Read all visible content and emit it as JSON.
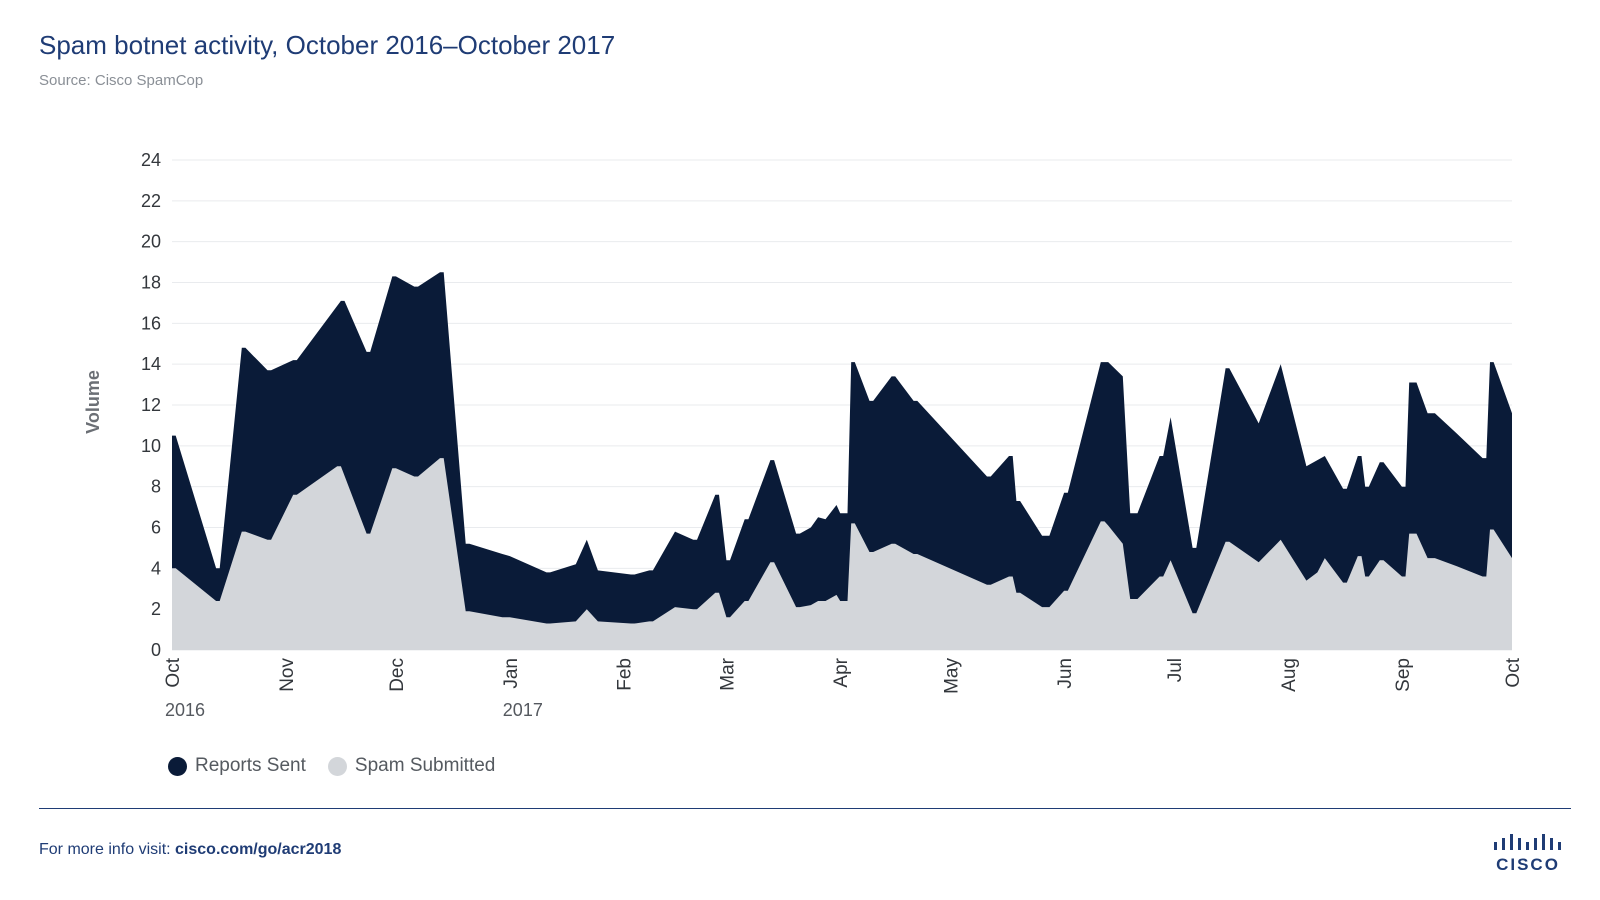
{
  "header": {
    "title": "Spam botnet activity, October 2016–October 2017",
    "source": "Source: Cisco SpamCop"
  },
  "legend": {
    "reports_label": "Reports Sent",
    "spam_label": "Spam Submitted"
  },
  "footer": {
    "prefix": "For more info visit: ",
    "link": "cisco.com/go/acr2018"
  },
  "logo": {
    "text": "CISCO",
    "icon": "cisco-bars-icon"
  },
  "colors": {
    "reports": "#0a1b38",
    "spam": "#d3d6da",
    "title": "#1f3c75",
    "grid": "#e9ebee"
  },
  "chart_data": {
    "type": "area",
    "ylabel": "Volume",
    "ylim": [
      0,
      24
    ],
    "yticks": [
      0,
      2,
      4,
      6,
      8,
      10,
      12,
      14,
      16,
      18,
      20,
      22,
      24
    ],
    "grid": "horizontal",
    "stacked": false,
    "legend_position": "bottom-left",
    "xlim": [
      "2016-10-01",
      "2017-10-01"
    ],
    "x_ticks": [
      {
        "date": "2016-10-01",
        "label": "Oct",
        "year": "2016"
      },
      {
        "date": "2016-11-01",
        "label": "Nov",
        "year": ""
      },
      {
        "date": "2016-12-01",
        "label": "Dec",
        "year": ""
      },
      {
        "date": "2017-01-01",
        "label": "Jan",
        "year": "2017"
      },
      {
        "date": "2017-02-01",
        "label": "Feb",
        "year": ""
      },
      {
        "date": "2017-03-01",
        "label": "Mar",
        "year": ""
      },
      {
        "date": "2017-04-01",
        "label": "Apr",
        "year": ""
      },
      {
        "date": "2017-05-01",
        "label": "May",
        "year": ""
      },
      {
        "date": "2017-06-01",
        "label": "Jun",
        "year": ""
      },
      {
        "date": "2017-07-01",
        "label": "Jul",
        "year": ""
      },
      {
        "date": "2017-08-01",
        "label": "Aug",
        "year": ""
      },
      {
        "date": "2017-09-01",
        "label": "Sep",
        "year": ""
      },
      {
        "date": "2017-10-01",
        "label": "Oct",
        "year": ""
      }
    ],
    "series": [
      {
        "name": "Reports Sent",
        "color": "#0a1b38",
        "points": [
          [
            "2016-10-01",
            10.5
          ],
          [
            "2016-10-02",
            10.5
          ],
          [
            "2016-10-13",
            4.0
          ],
          [
            "2016-10-14",
            4.0
          ],
          [
            "2016-10-20",
            14.8
          ],
          [
            "2016-10-21",
            14.8
          ],
          [
            "2016-10-27",
            13.7
          ],
          [
            "2016-10-28",
            13.7
          ],
          [
            "2016-11-03",
            14.2
          ],
          [
            "2016-11-04",
            14.2
          ],
          [
            "2016-11-16",
            17.1
          ],
          [
            "2016-11-17",
            17.1
          ],
          [
            "2016-11-23",
            14.6
          ],
          [
            "2016-11-24",
            14.6
          ],
          [
            "2016-11-30",
            18.3
          ],
          [
            "2016-12-01",
            18.3
          ],
          [
            "2016-12-06",
            17.8
          ],
          [
            "2016-12-07",
            17.8
          ],
          [
            "2016-12-13",
            18.5
          ],
          [
            "2016-12-14",
            18.5
          ],
          [
            "2016-12-20",
            5.2
          ],
          [
            "2016-12-21",
            5.2
          ],
          [
            "2016-12-30",
            4.7
          ],
          [
            "2017-01-01",
            4.6
          ],
          [
            "2017-01-11",
            3.8
          ],
          [
            "2017-01-12",
            3.8
          ],
          [
            "2017-01-19",
            4.2
          ],
          [
            "2017-01-22",
            5.4
          ],
          [
            "2017-01-25",
            3.9
          ],
          [
            "2017-02-03",
            3.7
          ],
          [
            "2017-02-04",
            3.7
          ],
          [
            "2017-02-08",
            3.9
          ],
          [
            "2017-02-09",
            3.9
          ],
          [
            "2017-02-15",
            5.8
          ],
          [
            "2017-02-20",
            5.4
          ],
          [
            "2017-02-21",
            5.4
          ],
          [
            "2017-02-26",
            7.6
          ],
          [
            "2017-02-27",
            7.6
          ],
          [
            "2017-03-01",
            4.4
          ],
          [
            "2017-03-02",
            4.4
          ],
          [
            "2017-03-06",
            6.4
          ],
          [
            "2017-03-07",
            6.4
          ],
          [
            "2017-03-13",
            9.3
          ],
          [
            "2017-03-14",
            9.3
          ],
          [
            "2017-03-20",
            5.7
          ],
          [
            "2017-03-21",
            5.7
          ],
          [
            "2017-03-24",
            6.0
          ],
          [
            "2017-03-26",
            6.5
          ],
          [
            "2017-03-28",
            6.4
          ],
          [
            "2017-03-31",
            7.1
          ],
          [
            "2017-04-01",
            6.7
          ],
          [
            "2017-04-03",
            6.7
          ],
          [
            "2017-04-04",
            14.1
          ],
          [
            "2017-04-05",
            14.1
          ],
          [
            "2017-04-09",
            12.2
          ],
          [
            "2017-04-10",
            12.2
          ],
          [
            "2017-04-15",
            13.4
          ],
          [
            "2017-04-16",
            13.4
          ],
          [
            "2017-04-21",
            12.2
          ],
          [
            "2017-04-22",
            12.2
          ],
          [
            "2017-05-11",
            8.5
          ],
          [
            "2017-05-12",
            8.5
          ],
          [
            "2017-05-17",
            9.5
          ],
          [
            "2017-05-18",
            9.5
          ],
          [
            "2017-05-19",
            7.3
          ],
          [
            "2017-05-20",
            7.3
          ],
          [
            "2017-05-26",
            5.6
          ],
          [
            "2017-05-28",
            5.6
          ],
          [
            "2017-06-01",
            7.7
          ],
          [
            "2017-06-02",
            7.7
          ],
          [
            "2017-06-11",
            14.1
          ],
          [
            "2017-06-12",
            14.1
          ],
          [
            "2017-06-13",
            14.1
          ],
          [
            "2017-06-17",
            13.4
          ],
          [
            "2017-06-19",
            6.7
          ],
          [
            "2017-06-21",
            6.7
          ],
          [
            "2017-06-27",
            9.5
          ],
          [
            "2017-06-28",
            9.5
          ],
          [
            "2017-06-30",
            11.4
          ],
          [
            "2017-07-06",
            5.0
          ],
          [
            "2017-07-07",
            5.0
          ],
          [
            "2017-07-15",
            13.8
          ],
          [
            "2017-07-16",
            13.8
          ],
          [
            "2017-07-24",
            11.1
          ],
          [
            "2017-07-30",
            14.0
          ],
          [
            "2017-08-06",
            9.0
          ],
          [
            "2017-08-09",
            9.3
          ],
          [
            "2017-08-11",
            9.5
          ],
          [
            "2017-08-16",
            7.9
          ],
          [
            "2017-08-17",
            7.9
          ],
          [
            "2017-08-20",
            9.5
          ],
          [
            "2017-08-21",
            9.5
          ],
          [
            "2017-08-22",
            8.0
          ],
          [
            "2017-08-23",
            8.0
          ],
          [
            "2017-08-26",
            9.2
          ],
          [
            "2017-08-27",
            9.2
          ],
          [
            "2017-09-01",
            8.0
          ],
          [
            "2017-09-02",
            8.0
          ],
          [
            "2017-09-03",
            13.1
          ],
          [
            "2017-09-05",
            13.1
          ],
          [
            "2017-09-08",
            11.6
          ],
          [
            "2017-09-10",
            11.6
          ],
          [
            "2017-09-16",
            10.6
          ],
          [
            "2017-09-23",
            9.4
          ],
          [
            "2017-09-24",
            9.4
          ],
          [
            "2017-09-25",
            14.1
          ],
          [
            "2017-09-26",
            14.1
          ],
          [
            "2017-10-03",
            11.6
          ]
        ]
      },
      {
        "name": "Spam Submitted",
        "color": "#d3d6da",
        "points": [
          [
            "2016-10-01",
            4.0
          ],
          [
            "2016-10-02",
            4.0
          ],
          [
            "2016-10-13",
            2.4
          ],
          [
            "2016-10-14",
            2.4
          ],
          [
            "2016-10-20",
            5.8
          ],
          [
            "2016-10-21",
            5.8
          ],
          [
            "2016-10-27",
            5.4
          ],
          [
            "2016-10-28",
            5.4
          ],
          [
            "2016-11-03",
            7.6
          ],
          [
            "2016-11-04",
            7.6
          ],
          [
            "2016-11-15",
            9.0
          ],
          [
            "2016-11-16",
            9.0
          ],
          [
            "2016-11-23",
            5.7
          ],
          [
            "2016-11-24",
            5.7
          ],
          [
            "2016-11-30",
            8.9
          ],
          [
            "2016-12-01",
            8.9
          ],
          [
            "2016-12-06",
            8.5
          ],
          [
            "2016-12-07",
            8.5
          ],
          [
            "2016-12-13",
            9.4
          ],
          [
            "2016-12-14",
            9.4
          ],
          [
            "2016-12-20",
            1.9
          ],
          [
            "2016-12-21",
            1.9
          ],
          [
            "2016-12-30",
            1.6
          ],
          [
            "2017-01-01",
            1.6
          ],
          [
            "2017-01-11",
            1.3
          ],
          [
            "2017-01-12",
            1.3
          ],
          [
            "2017-01-19",
            1.4
          ],
          [
            "2017-01-22",
            2.0
          ],
          [
            "2017-01-25",
            1.4
          ],
          [
            "2017-02-03",
            1.3
          ],
          [
            "2017-02-04",
            1.3
          ],
          [
            "2017-02-08",
            1.4
          ],
          [
            "2017-02-09",
            1.4
          ],
          [
            "2017-02-15",
            2.1
          ],
          [
            "2017-02-20",
            2.0
          ],
          [
            "2017-02-21",
            2.0
          ],
          [
            "2017-02-26",
            2.8
          ],
          [
            "2017-02-27",
            2.8
          ],
          [
            "2017-03-01",
            1.6
          ],
          [
            "2017-03-02",
            1.6
          ],
          [
            "2017-03-06",
            2.4
          ],
          [
            "2017-03-07",
            2.4
          ],
          [
            "2017-03-13",
            4.3
          ],
          [
            "2017-03-14",
            4.3
          ],
          [
            "2017-03-20",
            2.1
          ],
          [
            "2017-03-21",
            2.1
          ],
          [
            "2017-03-24",
            2.2
          ],
          [
            "2017-03-26",
            2.4
          ],
          [
            "2017-03-28",
            2.4
          ],
          [
            "2017-03-31",
            2.7
          ],
          [
            "2017-04-01",
            2.4
          ],
          [
            "2017-04-03",
            2.4
          ],
          [
            "2017-04-04",
            6.2
          ],
          [
            "2017-04-05",
            6.2
          ],
          [
            "2017-04-09",
            4.8
          ],
          [
            "2017-04-10",
            4.8
          ],
          [
            "2017-04-15",
            5.2
          ],
          [
            "2017-04-16",
            5.2
          ],
          [
            "2017-04-21",
            4.7
          ],
          [
            "2017-04-22",
            4.7
          ],
          [
            "2017-05-11",
            3.2
          ],
          [
            "2017-05-12",
            3.2
          ],
          [
            "2017-05-17",
            3.6
          ],
          [
            "2017-05-18",
            3.6
          ],
          [
            "2017-05-19",
            2.8
          ],
          [
            "2017-05-20",
            2.8
          ],
          [
            "2017-05-26",
            2.1
          ],
          [
            "2017-05-28",
            2.1
          ],
          [
            "2017-06-01",
            2.9
          ],
          [
            "2017-06-02",
            2.9
          ],
          [
            "2017-06-11",
            6.3
          ],
          [
            "2017-06-12",
            6.3
          ],
          [
            "2017-06-13",
            6.1
          ],
          [
            "2017-06-17",
            5.2
          ],
          [
            "2017-06-19",
            2.5
          ],
          [
            "2017-06-21",
            2.5
          ],
          [
            "2017-06-27",
            3.6
          ],
          [
            "2017-06-28",
            3.6
          ],
          [
            "2017-06-30",
            4.4
          ],
          [
            "2017-07-06",
            1.8
          ],
          [
            "2017-07-07",
            1.8
          ],
          [
            "2017-07-15",
            5.3
          ],
          [
            "2017-07-16",
            5.3
          ],
          [
            "2017-07-24",
            4.3
          ],
          [
            "2017-07-30",
            5.4
          ],
          [
            "2017-08-06",
            3.4
          ],
          [
            "2017-08-09",
            3.8
          ],
          [
            "2017-08-11",
            4.5
          ],
          [
            "2017-08-16",
            3.3
          ],
          [
            "2017-08-17",
            3.3
          ],
          [
            "2017-08-20",
            4.6
          ],
          [
            "2017-08-21",
            4.6
          ],
          [
            "2017-08-22",
            3.6
          ],
          [
            "2017-08-23",
            3.6
          ],
          [
            "2017-08-26",
            4.4
          ],
          [
            "2017-08-27",
            4.4
          ],
          [
            "2017-09-01",
            3.6
          ],
          [
            "2017-09-02",
            3.6
          ],
          [
            "2017-09-03",
            5.7
          ],
          [
            "2017-09-05",
            5.7
          ],
          [
            "2017-09-08",
            4.5
          ],
          [
            "2017-09-10",
            4.5
          ],
          [
            "2017-09-16",
            4.1
          ],
          [
            "2017-09-23",
            3.6
          ],
          [
            "2017-09-24",
            3.6
          ],
          [
            "2017-09-25",
            5.9
          ],
          [
            "2017-09-26",
            5.9
          ],
          [
            "2017-10-03",
            4.5
          ]
        ]
      }
    ]
  }
}
